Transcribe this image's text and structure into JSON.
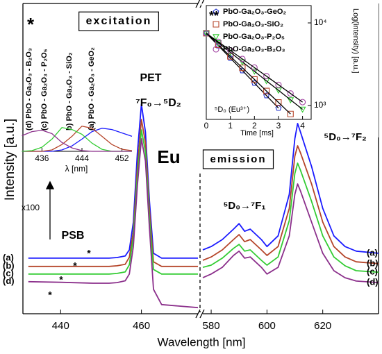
{
  "chart_data": [
    {
      "type": "line",
      "xlabel": "Wavelength [nm]",
      "ylabel": "Intensity [a.u.]",
      "x": [
        432,
        440,
        448,
        452,
        454,
        456,
        457,
        458,
        459,
        460,
        461,
        462,
        463,
        465,
        474
      ],
      "xlim": [
        431,
        474
      ],
      "xticks": [
        440,
        460
      ],
      "ylim": [
        0,
        100
      ],
      "series": [
        {
          "name": "(a)",
          "color": "#1a1aff",
          "values": [
            18.2,
            18.2,
            18.2,
            18.2,
            18.4,
            18.9,
            20.9,
            30,
            52.7,
            68.6,
            59.5,
            36.8,
            19.8,
            18.2,
            18.2
          ]
        },
        {
          "name": "(b)",
          "color": "#b5452a",
          "values": [
            15.5,
            15.5,
            15.5,
            15.5,
            15.7,
            16.2,
            18.5,
            27,
            48,
            63.6,
            56,
            34,
            17,
            15.5,
            15.5
          ]
        },
        {
          "name": "(c)",
          "color": "#33cc33",
          "values": [
            13,
            13,
            13,
            13,
            13.2,
            13.7,
            16,
            25,
            45,
            60.2,
            53,
            31,
            14.5,
            13,
            13
          ]
        },
        {
          "name": "(d)",
          "color": "#8b2f8b",
          "values": [
            10.5,
            10.3,
            10,
            10,
            10.2,
            10.8,
            13,
            22,
            42,
            57.3,
            50,
            28,
            8,
            3,
            2
          ]
        }
      ],
      "annotations": [
        "PET",
        "⁷F₀→⁵D₂",
        "Eu",
        "x100",
        "PSB",
        "*",
        "*",
        "*",
        "*"
      ]
    },
    {
      "type": "line",
      "x": [
        577,
        580,
        584,
        588,
        590,
        592,
        594,
        598,
        600,
        604,
        608,
        610,
        611,
        612,
        616,
        620,
        624,
        628,
        632,
        640
      ],
      "xlim": [
        577,
        640
      ],
      "xticks": [
        580,
        600,
        620
      ],
      "ylim": [
        0,
        100
      ],
      "series": [
        {
          "name": "(a)",
          "color": "#1a1aff",
          "values": [
            20.9,
            22,
            24.3,
            27.7,
            29.5,
            27,
            27.7,
            24.3,
            22,
            25.5,
            39.1,
            57.3,
            62.3,
            59.5,
            48.2,
            34.5,
            25.5,
            22,
            20.5,
            19.8
          ]
        },
        {
          "name": "(b)",
          "color": "#b5452a",
          "values": [
            17.5,
            18.6,
            20.9,
            24.3,
            25.9,
            23.6,
            24.3,
            20.9,
            19.1,
            22,
            34.5,
            51.6,
            55,
            52.7,
            42.5,
            30,
            22,
            18.6,
            17,
            16.4
          ]
        },
        {
          "name": "(c)",
          "color": "#33cc33",
          "values": [
            15.2,
            15.9,
            18.2,
            21.4,
            22.7,
            20.5,
            20.9,
            17.5,
            15.9,
            18.6,
            30.5,
            45.9,
            49.3,
            47,
            36.8,
            25.5,
            18.6,
            15.7,
            14.1,
            13.6
          ]
        },
        {
          "name": "(d)",
          "color": "#8b2f8b",
          "values": [
            11.8,
            13,
            15.2,
            19.1,
            20.5,
            18.2,
            18.6,
            15.2,
            13,
            15.2,
            25.5,
            39.1,
            42.5,
            40.2,
            30,
            19.8,
            14.1,
            11.8,
            10.7,
            10.2
          ]
        }
      ],
      "annotations": [
        "emission",
        "⁵D₀→⁷F₁",
        "⁵D₀→⁷F₂"
      ]
    },
    {
      "type": "line",
      "xlabel": "λ [nm]",
      "x": [
        432,
        434,
        436,
        438,
        440,
        442,
        444,
        446,
        448,
        450,
        452,
        454
      ],
      "xlim": [
        432,
        454
      ],
      "xticks": [
        436,
        444,
        452
      ],
      "ylim": [
        0,
        10
      ],
      "series": [
        {
          "name": "(a) PbO - Ga₂O₃ - GeO₂",
          "color": "#1a1aff",
          "values": [
            0,
            0,
            0,
            0,
            0.2,
            0.8,
            1.8,
            2.9,
            3.4,
            3.2,
            2.7,
            2.2
          ]
        },
        {
          "name": "b) PbO - Ga₂O₃ - SiO₂",
          "color": "#b5452a",
          "values": [
            0,
            0,
            0,
            0.2,
            1,
            2.2,
            3.7,
            3.4,
            2.2,
            1,
            0.3,
            0.1
          ]
        },
        {
          "name": "(c) PbO - Ga₂O₃ - P₂O₅",
          "color": "#33cc33",
          "values": [
            0,
            0.1,
            0.6,
            1.8,
            3.5,
            3.2,
            2.5,
            1.2,
            0.3,
            0,
            0,
            0
          ]
        },
        {
          "name": "(d) PbO - Ga₂O₃ - B₂O₃",
          "color": "#8b2f8b",
          "values": [
            2.3,
            2.9,
            3.1,
            2.6,
            1.3,
            0.5,
            0.1,
            0,
            0,
            0,
            0,
            0
          ]
        }
      ],
      "annotations": [
        "*",
        "excitation"
      ]
    },
    {
      "type": "scatter",
      "xlabel": "Time [ms]",
      "ylabel": "Log(intensity) [a.u.]",
      "log_y": true,
      "x": [
        0,
        0.5,
        1,
        1.5,
        2,
        2.5,
        3,
        3.5,
        4
      ],
      "xlim": [
        0,
        4.3
      ],
      "xticks": [
        0,
        1,
        2,
        3,
        4
      ],
      "ylim": [
        680,
        15600
      ],
      "yticks": [
        {
          "value": 10000,
          "label": "10⁴"
        },
        {
          "value": 1000,
          "label": "10³"
        }
      ],
      "series": [
        {
          "name": "PbO-Ga₂O₃-GeO₂",
          "color": "#2233cc",
          "marker": "pentagon",
          "values": [
            7500,
            5300,
            3750,
            2650,
            1870,
            1320,
            930,
            null,
            null
          ]
        },
        {
          "name": "PbO-Ga₂O₃-SiO₂",
          "color": "#b5452a",
          "marker": "square",
          "values": [
            7500,
            5440,
            3940,
            2860,
            2070,
            1500,
            1090,
            790,
            null
          ]
        },
        {
          "name": "PbO-Ga₂O₃-P₂O₅",
          "color": "#33cc33",
          "marker": "triangle",
          "values": [
            7500,
            5740,
            4400,
            3370,
            2600,
            1990,
            1530,
            1170,
            900
          ]
        },
        {
          "name": "PbO-Ga₂O₃-B₂O₃",
          "color": "#a040a0",
          "marker": "circle",
          "values": [
            7500,
            5900,
            4650,
            3660,
            2880,
            2270,
            1780,
            1400,
            1100
          ]
        }
      ],
      "annotations": [
        "**",
        "⁵D₀ (Eu³⁺)"
      ]
    }
  ]
}
